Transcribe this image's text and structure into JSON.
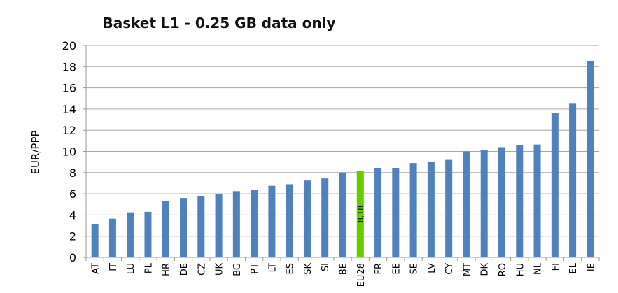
{
  "chart_data": {
    "type": "bar",
    "title": "Basket L1 - 0.25 GB data only",
    "xlabel": "",
    "ylabel": "EUR/PPP",
    "ylim": [
      0,
      20
    ],
    "yticks": [
      0,
      2,
      4,
      6,
      8,
      10,
      12,
      14,
      16,
      18,
      20
    ],
    "grid": true,
    "categories": [
      "AT",
      "IT",
      "LU",
      "PL",
      "HR",
      "DE",
      "CZ",
      "UK",
      "BG",
      "PT",
      "LT",
      "ES",
      "SK",
      "SI",
      "BE",
      "EU28",
      "FR",
      "EE",
      "SE",
      "LV",
      "CY",
      "MT",
      "DK",
      "RO",
      "HU",
      "NL",
      "FI",
      "EL",
      "IE"
    ],
    "values": [
      3.1,
      3.65,
      4.25,
      4.3,
      5.3,
      5.6,
      5.8,
      6.0,
      6.25,
      6.4,
      6.75,
      6.9,
      7.25,
      7.45,
      8.0,
      8.18,
      8.45,
      8.45,
      8.9,
      9.05,
      9.2,
      10.0,
      10.15,
      10.4,
      10.6,
      10.65,
      13.6,
      14.5,
      18.55
    ],
    "bar_color": "#4f81bd",
    "highlight_color": "#66cc00",
    "highlight_category": "EU28",
    "data_labels": [
      {
        "category": "EU28",
        "text": "8,18"
      }
    ]
  }
}
